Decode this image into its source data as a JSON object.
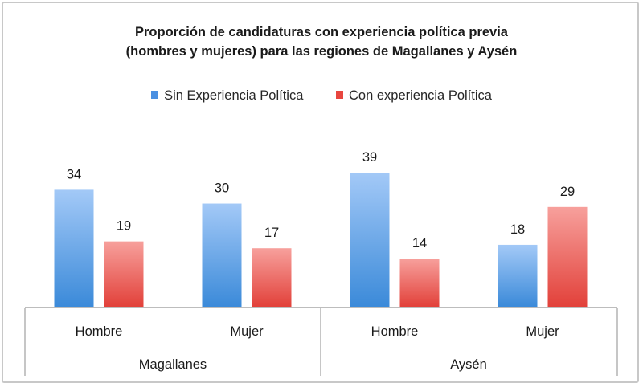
{
  "chart_data": {
    "type": "bar",
    "title_lines": [
      "Proporción de candidaturas con experiencia política previa",
      "(hombres y mujeres) para las regiones de Magallanes y Aysén"
    ],
    "groups": [
      {
        "region": "Magallanes",
        "categories": [
          "Hombre",
          "Mujer"
        ]
      },
      {
        "region": "Aysén",
        "categories": [
          "Hombre",
          "Mujer"
        ]
      }
    ],
    "categories": [
      "Hombre",
      "Mujer",
      "Hombre",
      "Mujer"
    ],
    "series": [
      {
        "name": "Sin Experiencia Política",
        "color": "#4a90e2",
        "values": [
          34,
          30,
          39,
          18
        ]
      },
      {
        "name": "Con experiencia Política",
        "color": "#e8463f",
        "values": [
          19,
          17,
          14,
          29
        ]
      }
    ],
    "value_labels": [
      [
        "34",
        "30",
        "39",
        "18"
      ],
      [
        "19",
        "17",
        "14",
        "29"
      ]
    ],
    "xlabel": "",
    "ylabel": "",
    "ylim": [
      0,
      39
    ],
    "grid": false,
    "legend_position": "top"
  }
}
